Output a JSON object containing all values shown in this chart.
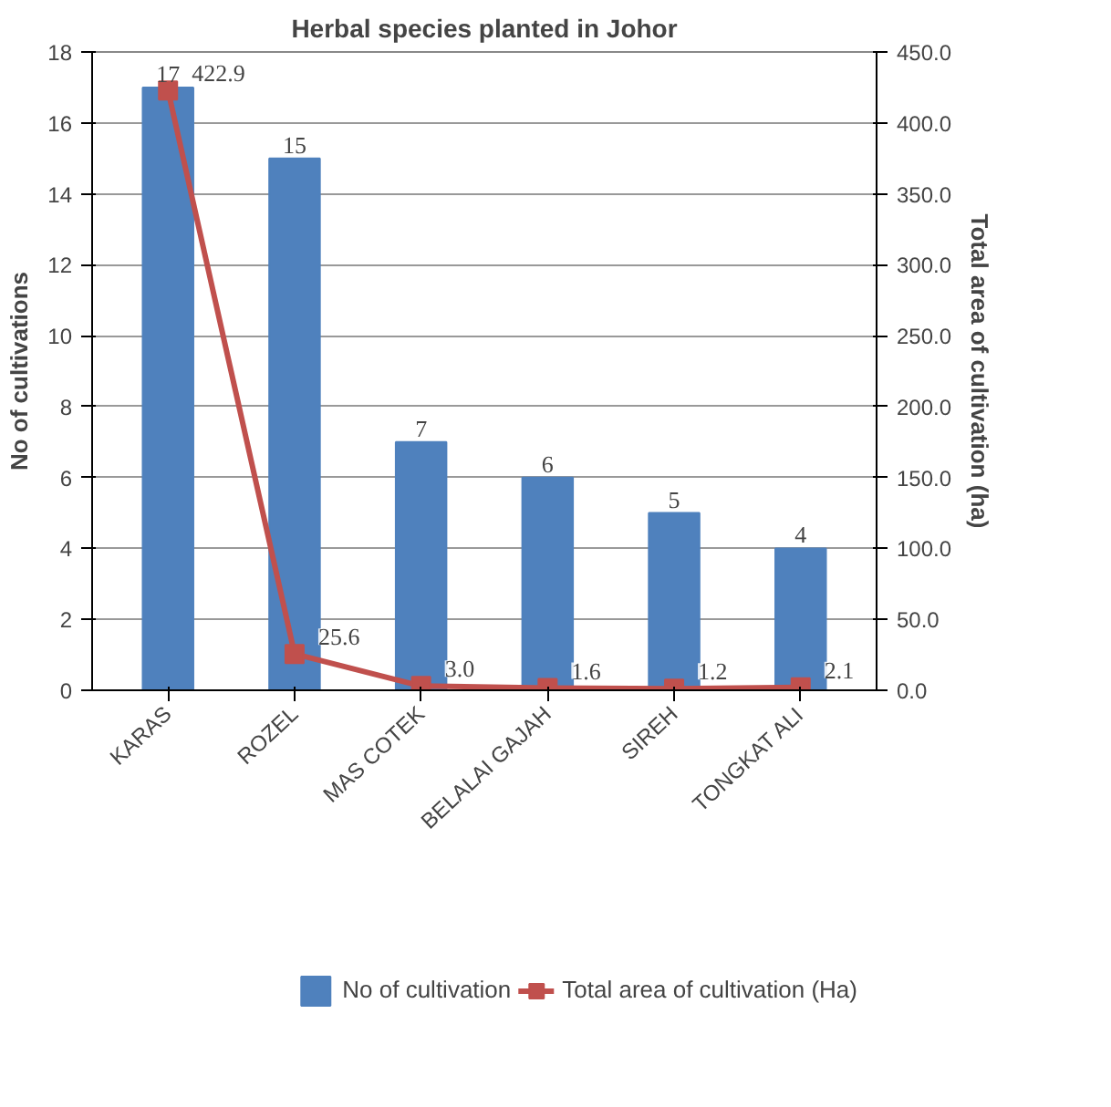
{
  "chart_data": {
    "type": "bar",
    "title": "Herbal species planted in Johor",
    "ylabel": "No of cultivations",
    "y2label": "Total area of cultivation (ha)",
    "categories": [
      "KARAS",
      "ROZEL",
      "MAS COTEK",
      "BELALAI GAJAH",
      "SIREH",
      "TONGKAT ALI"
    ],
    "series": [
      {
        "name": "No of cultivation",
        "color": "#4f81bd",
        "values": [
          17,
          15,
          7,
          6,
          5,
          4
        ],
        "value_labels": [
          "17",
          "15",
          "7",
          "6",
          "5",
          "4"
        ]
      },
      {
        "name": "Total area of cultivation (Ha)",
        "type": "line",
        "axis": "y2",
        "color": "#c0504d",
        "marker": "square",
        "values": [
          422.9,
          25.6,
          3.0,
          1.6,
          1.2,
          2.1
        ],
        "value_labels": [
          "422.9",
          "25.6",
          "3.0",
          "1.6",
          "1.2",
          "2.1"
        ]
      }
    ],
    "ylim": [
      0,
      18
    ],
    "yticks": [
      0,
      2,
      4,
      6,
      8,
      10,
      12,
      14,
      16,
      18
    ],
    "y2lim": [
      0,
      450
    ],
    "y2ticks": [
      {
        "value": 0,
        "label": "0.0"
      },
      {
        "value": 50,
        "label": "50.0"
      },
      {
        "value": 100,
        "label": "100.0"
      },
      {
        "value": 150,
        "label": "150.0"
      },
      {
        "value": 200,
        "label": "200.0"
      },
      {
        "value": 250,
        "label": "250.0"
      },
      {
        "value": 300,
        "label": "300.0"
      },
      {
        "value": 350,
        "label": "350.0"
      },
      {
        "value": 400,
        "label": "400.0"
      },
      {
        "value": 450,
        "label": "450.0"
      }
    ],
    "grid": "y",
    "legend": "bottom"
  }
}
